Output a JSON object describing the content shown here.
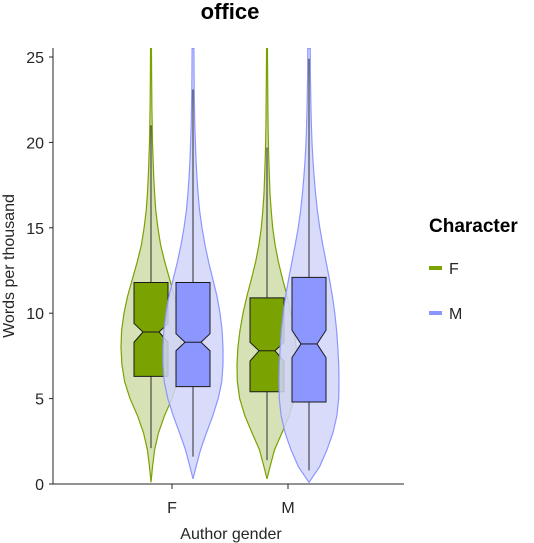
{
  "chart_data": {
    "type": "violin",
    "title": "office",
    "xlabel": "Author gender",
    "ylabel": "Words per thousand",
    "categories": [
      "F",
      "M"
    ],
    "ylim": [
      0,
      25.5
    ],
    "yticks": [
      0,
      5,
      10,
      15,
      20,
      25
    ],
    "grid": false,
    "legend": {
      "title": "Character",
      "placement": "right",
      "entries": [
        {
          "name": "F",
          "color": "#7aa200"
        },
        {
          "name": "M",
          "color": "#8c96ff"
        }
      ]
    },
    "groups": [
      {
        "category": "F",
        "character": "F",
        "color": "#7aa200",
        "violin_fill": "#cfdca9",
        "q1": 6.3,
        "median": 8.9,
        "q3": 11.8,
        "whisker_low": 2.1,
        "whisker_high": 21.0,
        "notch_low": 8.3,
        "notch_high": 9.4,
        "density": [
          [
            0.1,
            0.0
          ],
          [
            1,
            0.05
          ],
          [
            2,
            0.12
          ],
          [
            3,
            0.25
          ],
          [
            4,
            0.45
          ],
          [
            5,
            0.7
          ],
          [
            6,
            0.88
          ],
          [
            7,
            0.97
          ],
          [
            8,
            1.0
          ],
          [
            9,
            0.98
          ],
          [
            10,
            0.9
          ],
          [
            11,
            0.78
          ],
          [
            12,
            0.62
          ],
          [
            13,
            0.46
          ],
          [
            14,
            0.32
          ],
          [
            15,
            0.23
          ],
          [
            16,
            0.16
          ],
          [
            17,
            0.12
          ],
          [
            18,
            0.09
          ],
          [
            19,
            0.07
          ],
          [
            20,
            0.05
          ],
          [
            21,
            0.04
          ],
          [
            22,
            0.03
          ],
          [
            23,
            0.025
          ],
          [
            24,
            0.02
          ],
          [
            25.5,
            0.015
          ]
        ]
      },
      {
        "category": "F",
        "character": "M",
        "color": "#8c96ff",
        "violin_fill": "#d1d5f9",
        "q1": 5.7,
        "median": 8.3,
        "q3": 11.8,
        "whisker_low": 1.6,
        "whisker_high": 23.1,
        "notch_low": 7.8,
        "notch_high": 8.8,
        "density": [
          [
            0.3,
            0.0
          ],
          [
            1,
            0.1
          ],
          [
            2,
            0.25
          ],
          [
            3,
            0.45
          ],
          [
            4,
            0.66
          ],
          [
            5,
            0.84
          ],
          [
            6,
            0.96
          ],
          [
            7,
            1.0
          ],
          [
            8,
            1.0
          ],
          [
            9,
            0.97
          ],
          [
            10,
            0.9
          ],
          [
            11,
            0.8
          ],
          [
            12,
            0.66
          ],
          [
            13,
            0.52
          ],
          [
            14,
            0.4
          ],
          [
            15,
            0.3
          ],
          [
            16,
            0.22
          ],
          [
            17,
            0.17
          ],
          [
            18,
            0.13
          ],
          [
            19,
            0.1
          ],
          [
            20,
            0.08
          ],
          [
            21,
            0.06
          ],
          [
            22,
            0.05
          ],
          [
            23,
            0.04
          ],
          [
            24,
            0.035
          ],
          [
            25.5,
            0.03
          ]
        ]
      },
      {
        "category": "M",
        "character": "F",
        "color": "#7aa200",
        "violin_fill": "#cfdca9",
        "q1": 5.4,
        "median": 7.8,
        "q3": 10.9,
        "whisker_low": 1.4,
        "whisker_high": 19.7,
        "notch_low": 7.2,
        "notch_high": 8.3,
        "density": [
          [
            0.3,
            0.0
          ],
          [
            1,
            0.1
          ],
          [
            2,
            0.25
          ],
          [
            3,
            0.5
          ],
          [
            4,
            0.74
          ],
          [
            5,
            0.91
          ],
          [
            6,
            0.99
          ],
          [
            7,
            1.0
          ],
          [
            8,
            0.97
          ],
          [
            9,
            0.9
          ],
          [
            10,
            0.8
          ],
          [
            11,
            0.67
          ],
          [
            12,
            0.52
          ],
          [
            13,
            0.38
          ],
          [
            14,
            0.27
          ],
          [
            15,
            0.19
          ],
          [
            16,
            0.14
          ],
          [
            17,
            0.1
          ],
          [
            18,
            0.08
          ],
          [
            19,
            0.06
          ],
          [
            20,
            0.045
          ],
          [
            21,
            0.035
          ],
          [
            22,
            0.03
          ],
          [
            23,
            0.025
          ],
          [
            24,
            0.02
          ],
          [
            25.5,
            0.015
          ]
        ]
      },
      {
        "category": "M",
        "character": "M",
        "color": "#8c96ff",
        "violin_fill": "#d1d5f9",
        "q1": 4.8,
        "median": 8.2,
        "q3": 12.1,
        "whisker_low": 0.8,
        "whisker_high": 24.9,
        "notch_low": 7.4,
        "notch_high": 9.0,
        "density": [
          [
            0.1,
            0.0
          ],
          [
            1,
            0.35
          ],
          [
            2,
            0.6
          ],
          [
            3,
            0.8
          ],
          [
            4,
            0.93
          ],
          [
            5,
            0.99
          ],
          [
            6,
            1.0
          ],
          [
            7,
            0.99
          ],
          [
            8,
            0.96
          ],
          [
            9,
            0.92
          ],
          [
            10,
            0.86
          ],
          [
            11,
            0.78
          ],
          [
            12,
            0.68
          ],
          [
            13,
            0.57
          ],
          [
            14,
            0.46
          ],
          [
            15,
            0.36
          ],
          [
            16,
            0.28
          ],
          [
            17,
            0.22
          ],
          [
            18,
            0.17
          ],
          [
            19,
            0.13
          ],
          [
            20,
            0.1
          ],
          [
            21,
            0.08
          ],
          [
            22,
            0.065
          ],
          [
            23,
            0.055
          ],
          [
            24,
            0.045
          ],
          [
            25.5,
            0.04
          ]
        ]
      }
    ]
  }
}
